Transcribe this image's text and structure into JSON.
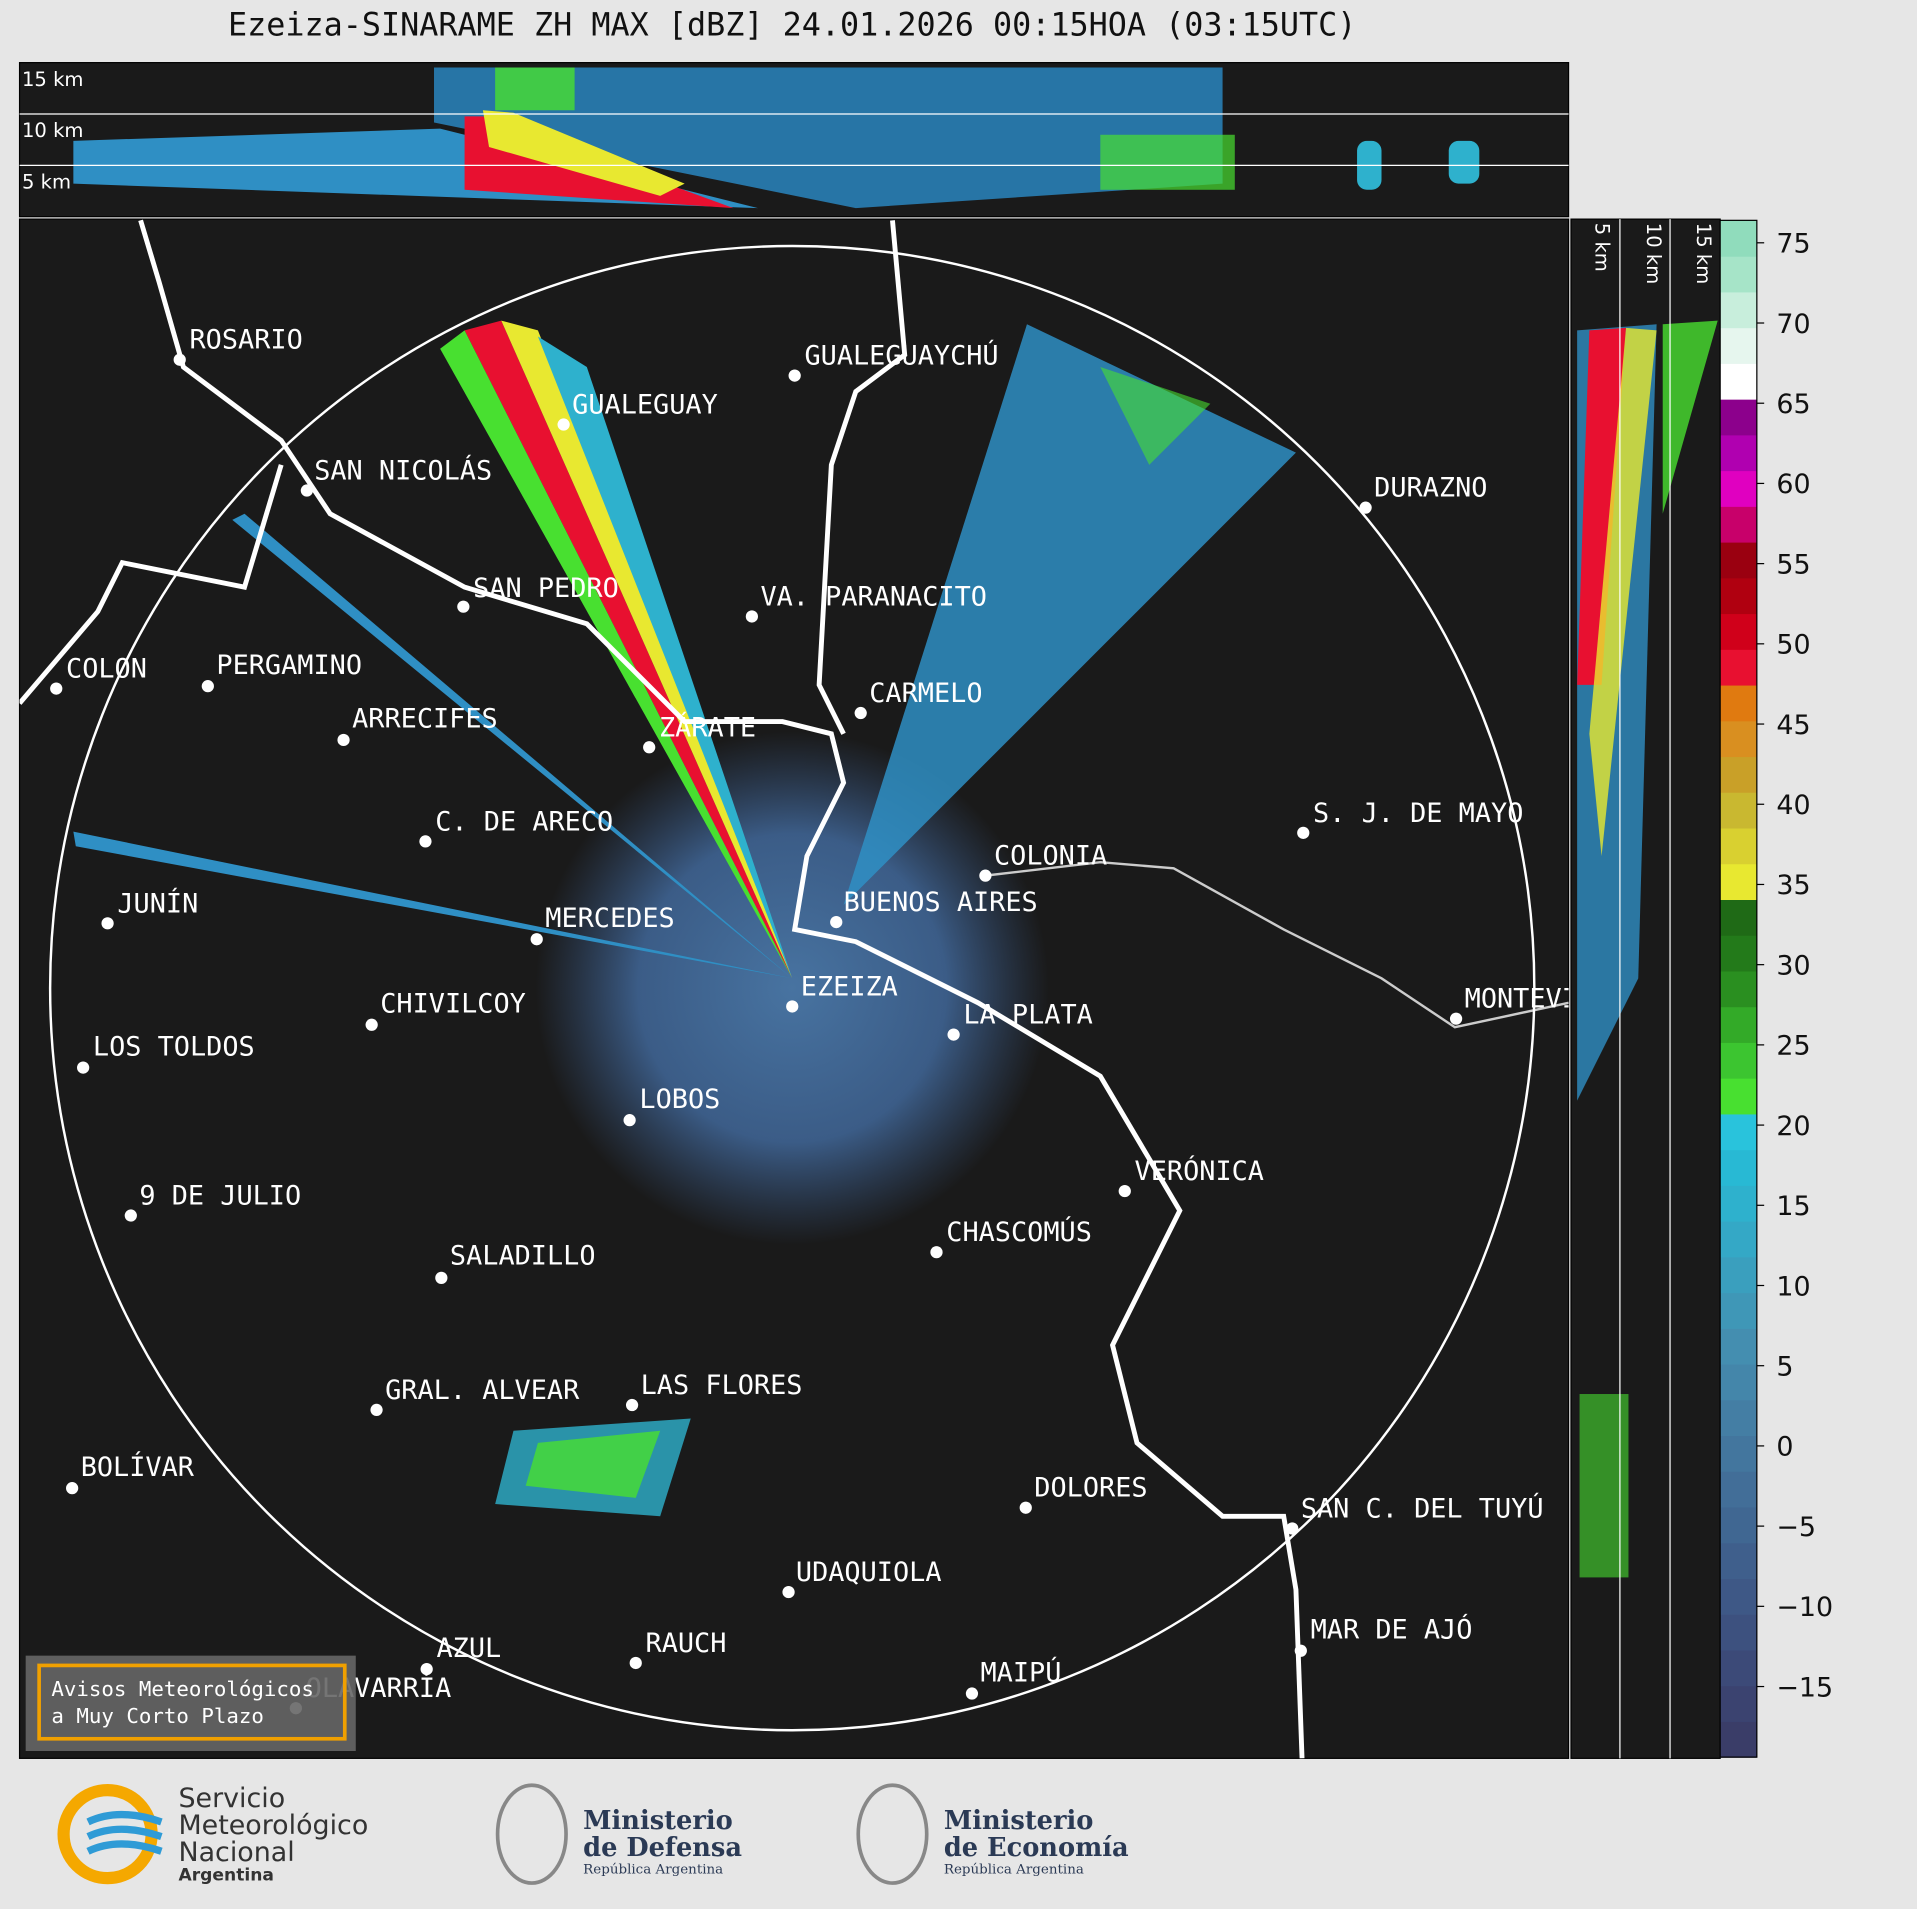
{
  "title": "Ezeiza-SINARAME ZH MAX [dBZ] 24.01.2026 00:15HOA (03:15UTC)",
  "cross_section_top": {
    "labels": [
      "15 km",
      "10 km",
      "5 km"
    ]
  },
  "cross_section_right": {
    "labels": [
      "5 km",
      "10 km",
      "15 km"
    ]
  },
  "map": {
    "cities": [
      "ROSARIO",
      "GUALEGUAYCHÚ",
      "GUALEGUAY",
      "SAN NICOLÁS",
      "DURAZNO",
      "SAN PEDRO",
      "VA. PARANACITO",
      "COLON",
      "PERGAMINO",
      "CARMELO",
      "ARRECIFES",
      "ZÁRATE",
      "S. J. DE MAYO",
      "C. DE ARECO",
      "COLONIA",
      "BUENOS AIRES",
      "JUNÍN",
      "MERCEDES",
      "EZEIZA",
      "MONTEVIDEO",
      "LA PLATA",
      "CHIVILCOY",
      "LOS TOLDOS",
      "LOBOS",
      "VERÓNICA",
      "9 DE JULIO",
      "CHASCOMÚS",
      "SALADILLO",
      "GRAL. ALVEAR",
      "LAS FLORES",
      "BOLÍVAR",
      "DOLORES",
      "SAN C. DEL TUYÚ",
      "UDAQUIOLA",
      "MAR DE AJÓ",
      "RAUCH",
      "AZUL",
      "OLAVARRÍA",
      "MAIPÚ"
    ]
  },
  "legend_box": {
    "lines": [
      "Avisos Meteorológicos",
      "a Muy Corto Plazo"
    ]
  },
  "colorbar": {
    "lim": [
      -19.4,
      76.4
    ],
    "ticks": [
      {
        "value": -15,
        "label": "−15"
      },
      {
        "value": -10,
        "label": "−10"
      },
      {
        "value": -5,
        "label": "−5"
      },
      0,
      5,
      10,
      15,
      20,
      25,
      30,
      35,
      40,
      45,
      50,
      55,
      60,
      65,
      70,
      75
    ],
    "colors": [
      "#3a3d68",
      "#3b4370",
      "#3c4a78",
      "#3d517f",
      "#3e5886",
      "#3f5f8c",
      "#406792",
      "#426e98",
      "#43769e",
      "#447ea4",
      "#4486aa",
      "#448eb0",
      "#3f97b7",
      "#3a9fbe",
      "#34a8c6",
      "#2eb1cd",
      "#28b9d4",
      "#29c3dc",
      "#48e030",
      "#3cc530",
      "#33aa28",
      "#2a8f20",
      "#237a1a",
      "#1f6a16",
      "#e8e830",
      "#d9d030",
      "#c9b830",
      "#c9a028",
      "#d98f20",
      "#e07a10",
      "#e81030",
      "#d0001a",
      "#b00010",
      "#9a0010",
      "#c8006a",
      "#e000c0",
      "#b000b0",
      "#8c008c",
      "#ffffff",
      "#e6f6ee",
      "#c8eedc",
      "#a6e4c8",
      "#90dcbc"
    ]
  },
  "footer": {
    "smn": [
      "Servicio",
      "Meteorológico",
      "Nacional",
      "Argentina"
    ],
    "defensa": [
      "Ministerio",
      "de Defensa",
      "República Argentina"
    ],
    "economia": [
      "Ministerio",
      "de Economía",
      "República Argentina"
    ]
  }
}
